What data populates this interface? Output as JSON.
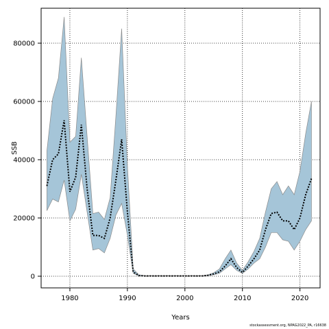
{
  "chart_data": {
    "type": "area",
    "xlabel": "Years",
    "ylabel": "SSB",
    "xlim": [
      1975,
      2023.5
    ],
    "ylim": [
      -4000,
      92000
    ],
    "xticks": [
      1980,
      1990,
      2000,
      2010,
      2020
    ],
    "yticks": [
      0,
      20000,
      40000,
      60000,
      80000
    ],
    "grid": true,
    "band_color": "#a5c5d8",
    "band_edge_color": "#8a8a8a",
    "line_color": "#000000",
    "x": [
      1976,
      1977,
      1978,
      1979,
      1980,
      1981,
      1982,
      1983,
      1984,
      1985,
      1986,
      1987,
      1988,
      1989,
      1990,
      1991,
      1992,
      1993,
      1994,
      1995,
      1996,
      1997,
      1998,
      1999,
      2000,
      2001,
      2002,
      2003,
      2004,
      2005,
      2006,
      2007,
      2008,
      2009,
      2010,
      2011,
      2012,
      2013,
      2014,
      2015,
      2016,
      2017,
      2018,
      2019,
      2020,
      2021,
      2022
    ],
    "series": [
      {
        "role": "estimate",
        "values": [
          31000,
          40000,
          42000,
          53500,
          29000,
          34000,
          52000,
          30000,
          14000,
          14000,
          13000,
          20000,
          33000,
          47000,
          22000,
          1500,
          200,
          100,
          100,
          100,
          100,
          100,
          100,
          100,
          100,
          100,
          100,
          100,
          300,
          800,
          1500,
          3500,
          6000,
          3000,
          1300,
          3500,
          6000,
          9000,
          16000,
          21500,
          22000,
          19000,
          19000,
          16000,
          20000,
          28000,
          33500
        ]
      },
      {
        "role": "lower",
        "values": [
          22500,
          26500,
          25500,
          33000,
          19000,
          23000,
          35000,
          22000,
          9000,
          9500,
          8000,
          13000,
          21000,
          25000,
          14000,
          1000,
          100,
          50,
          50,
          50,
          50,
          50,
          50,
          50,
          50,
          50,
          50,
          50,
          200,
          500,
          1000,
          2500,
          4000,
          2000,
          1000,
          2500,
          4500,
          6000,
          10000,
          15000,
          15000,
          12500,
          12000,
          9000,
          12000,
          16000,
          19000
        ]
      },
      {
        "role": "upper",
        "values": [
          43000,
          61000,
          68000,
          89000,
          46000,
          48000,
          75000,
          48000,
          21500,
          22000,
          19500,
          27000,
          55000,
          85000,
          38000,
          2500,
          500,
          200,
          200,
          200,
          200,
          200,
          200,
          200,
          200,
          200,
          200,
          200,
          500,
          1200,
          2500,
          6000,
          9000,
          4500,
          2000,
          5000,
          8500,
          13000,
          22000,
          30000,
          32500,
          28000,
          31000,
          28000,
          36000,
          49000,
          60000
        ]
      }
    ]
  },
  "footer": "stockassessment.org, NPAG2022_PA, r16638"
}
